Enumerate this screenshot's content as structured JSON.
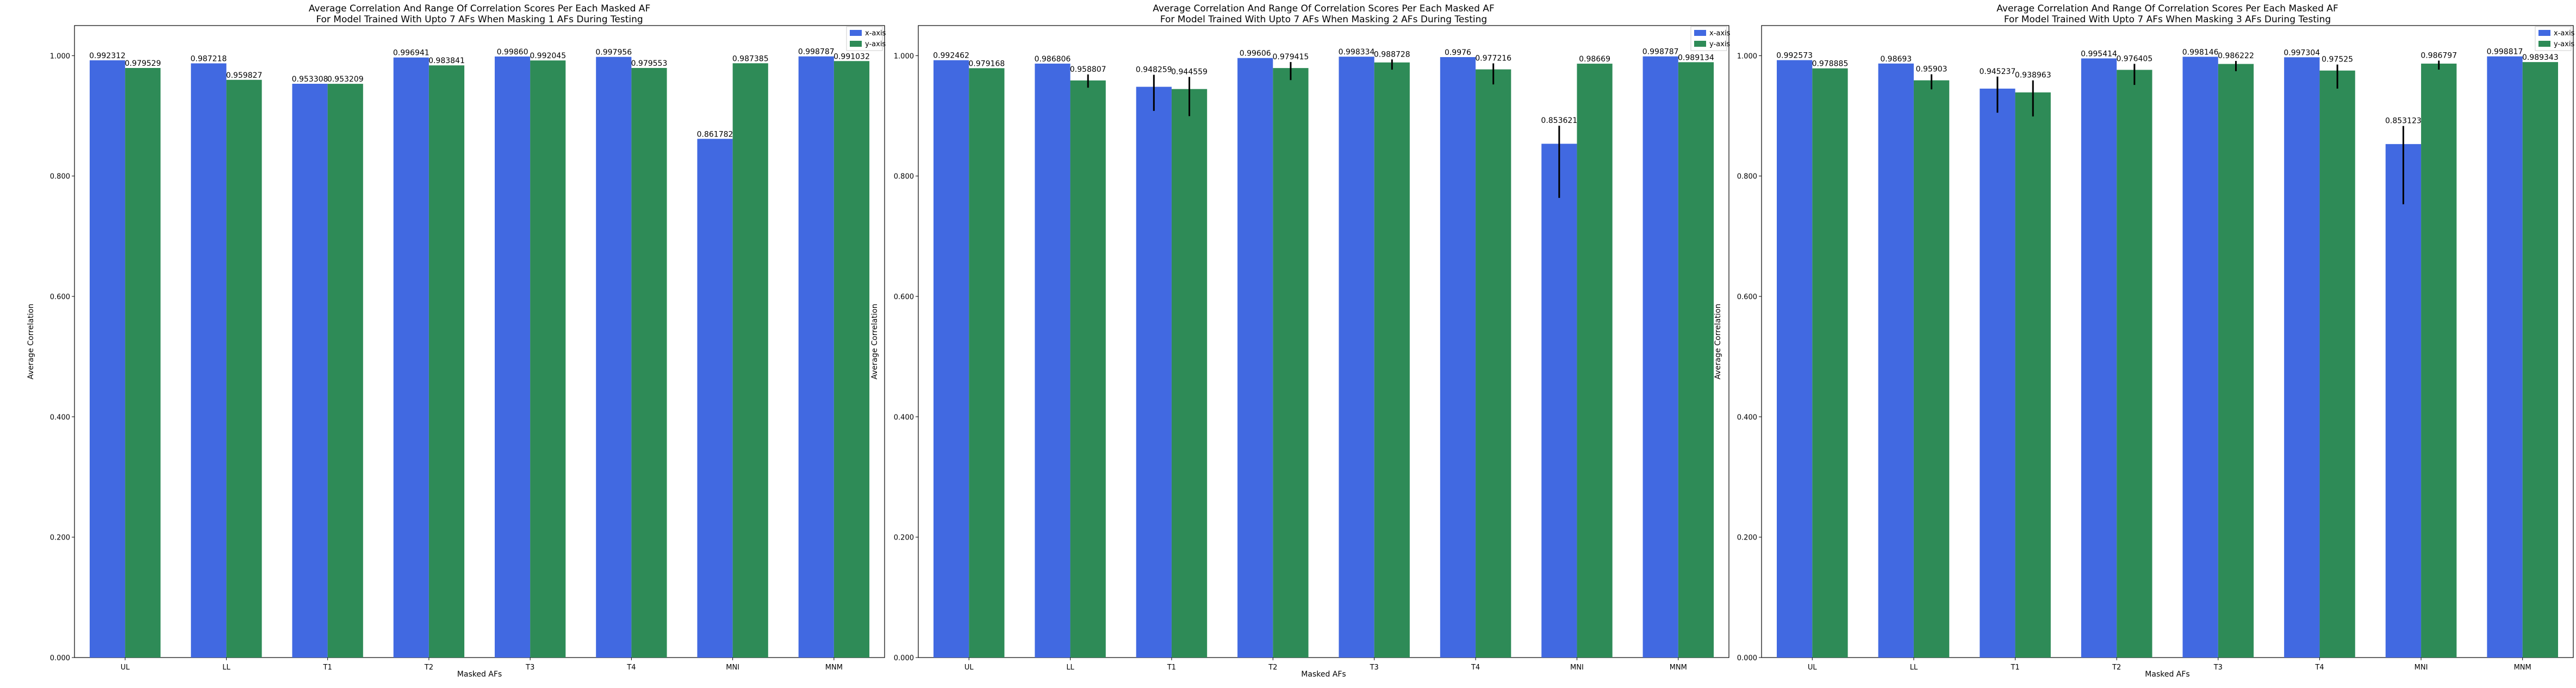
{
  "colors": {
    "x_axis": "#4169e1",
    "y_axis": "#2e8b57",
    "error_bar": "#000000"
  },
  "chart_data": [
    {
      "type": "bar",
      "title": "Average Correlation And Range Of Correlation Scores Per Each Masked AF",
      "subtitle": "For Model Trained With Upto 7 AFs When Masking 1 AFs During Testing",
      "xlabel": "Masked AFs",
      "ylabel": "Average Correlation",
      "ylim": [
        0,
        1.05
      ],
      "yticks": [
        "0.000",
        "0.200",
        "0.400",
        "0.600",
        "0.800",
        "1.000"
      ],
      "categories": [
        "UL",
        "LL",
        "T1",
        "T2",
        "T3",
        "T4",
        "MNI",
        "MNM"
      ],
      "legend": "top-right",
      "series": [
        {
          "name": "x-axis",
          "values": [
            0.992312,
            0.987218,
            0.953308,
            0.996941,
            0.9986,
            0.997956,
            0.861782,
            0.998787
          ],
          "labels": [
            "0.992312",
            "0.987218",
            "0.953308",
            "0.996941",
            "0.99860",
            "0.997956",
            "0.861782",
            "0.998787"
          ]
        },
        {
          "name": "y-axis",
          "values": [
            0.979529,
            0.959827,
            0.953209,
            0.983841,
            0.992045,
            0.979553,
            0.987385,
            0.991032
          ],
          "labels": [
            "0.979529",
            "0.959827",
            "0.953209",
            "0.983841",
            "0.992045",
            "0.979553",
            "0.987385",
            "0.991032"
          ]
        }
      ]
    },
    {
      "type": "bar",
      "title": "Average Correlation And Range Of Correlation Scores Per Each Masked AF",
      "subtitle": "For Model Trained With Upto 7 AFs When Masking 2 AFs During Testing",
      "xlabel": "Masked AFs",
      "ylabel": "Average Correlation",
      "ylim": [
        0,
        1.05
      ],
      "yticks": [
        "0.000",
        "0.200",
        "0.400",
        "0.600",
        "0.800",
        "1.000"
      ],
      "categories": [
        "UL",
        "LL",
        "T1",
        "T2",
        "T3",
        "T4",
        "MNI",
        "MNM"
      ],
      "legend": "top-right",
      "series": [
        {
          "name": "x-axis",
          "values": [
            0.992462,
            0.986806,
            0.948259,
            0.99606,
            0.998334,
            0.9976,
            0.853621,
            0.998787
          ],
          "err_low": [
            0,
            0,
            0.04,
            0,
            0,
            0,
            0.09,
            0
          ],
          "err_high": [
            0,
            0,
            0.02,
            0,
            0,
            0,
            0.03,
            0
          ],
          "labels": [
            "0.992462",
            "0.986806",
            "0.948259",
            "0.99606",
            "0.998334",
            "0.9976",
            "0.853621",
            "0.998787"
          ]
        },
        {
          "name": "y-axis",
          "values": [
            0.979168,
            0.958807,
            0.944559,
            0.979415,
            0.988728,
            0.977216,
            0.98669,
            0.989134
          ],
          "err_low": [
            0,
            0.012,
            0.045,
            0.02,
            0.012,
            0.025,
            0,
            0
          ],
          "err_high": [
            0,
            0.01,
            0.02,
            0.01,
            0.005,
            0.01,
            0,
            0
          ],
          "labels": [
            "0.979168",
            "0.958807",
            "0.944559",
            "0.979415",
            "0.988728",
            "0.977216",
            "0.98669",
            "0.989134"
          ]
        }
      ]
    },
    {
      "type": "bar",
      "title": "Average Correlation And Range Of Correlation Scores Per Each Masked AF",
      "subtitle": "For Model Trained With Upto 7 AFs When Masking 3 AFs During Testing",
      "xlabel": "Masked AFs",
      "ylabel": "Average Correlation",
      "ylim": [
        0,
        1.05
      ],
      "yticks": [
        "0.000",
        "0.200",
        "0.400",
        "0.600",
        "0.800",
        "1.000"
      ],
      "categories": [
        "UL",
        "LL",
        "T1",
        "T2",
        "T3",
        "T4",
        "MNI",
        "MNM"
      ],
      "legend": "top-right",
      "series": [
        {
          "name": "x-axis",
          "values": [
            0.992573,
            0.98693,
            0.945237,
            0.995414,
            0.998146,
            0.997304,
            0.853123,
            0.998817
          ],
          "err_low": [
            0,
            0,
            0.04,
            0,
            0,
            0,
            0.1,
            0
          ],
          "err_high": [
            0,
            0,
            0.02,
            0,
            0,
            0,
            0.03,
            0
          ],
          "labels": [
            "0.992573",
            "0.98693",
            "0.945237",
            "0.995414",
            "0.998146",
            "0.997304",
            "0.853123",
            "0.998817"
          ]
        },
        {
          "name": "y-axis",
          "values": [
            0.978885,
            0.95903,
            0.938963,
            0.976405,
            0.986222,
            0.97525,
            0.986797,
            0.989343
          ],
          "err_low": [
            0,
            0.015,
            0.04,
            0.025,
            0.012,
            0.03,
            0.01,
            0
          ],
          "err_high": [
            0,
            0.01,
            0.02,
            0.01,
            0.005,
            0.01,
            0.005,
            0
          ],
          "labels": [
            "0.978885",
            "0.95903",
            "0.938963",
            "0.976405",
            "0.986222",
            "0.97525",
            "0.986797",
            "0.989343"
          ]
        }
      ]
    }
  ]
}
